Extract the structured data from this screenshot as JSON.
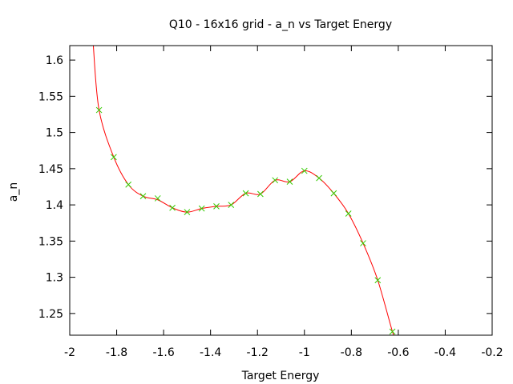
{
  "chart_data": {
    "type": "line",
    "title": "Q10 - 16x16 grid - a_n vs Target Energy",
    "xlabel": "Target Energy",
    "ylabel": "a_n",
    "xlim": [
      -2,
      -0.2
    ],
    "ylim": [
      1.22,
      1.62
    ],
    "x_ticks": [
      -2,
      -1.8,
      -1.6,
      -1.4,
      -1.2,
      -1,
      -0.8,
      -0.6,
      -0.4,
      -0.2
    ],
    "x_tick_labels": [
      "-2",
      "-1.8",
      "-1.6",
      "-1.4",
      "-1.2",
      "-1",
      "-0.8",
      "-0.6",
      "-0.4",
      "-0.2"
    ],
    "y_ticks": [
      1.25,
      1.3,
      1.35,
      1.4,
      1.45,
      1.5,
      1.55,
      1.6
    ],
    "y_tick_labels": [
      "1.25",
      "1.3",
      "1.35",
      "1.4",
      "1.45",
      "1.5",
      "1.55",
      "1.6"
    ],
    "grid": false,
    "legend": "none",
    "series": [
      {
        "kind": "scatter",
        "marker": "x",
        "color": "#33cc00",
        "points": [
          {
            "x": -1.875,
            "y": 1.531
          },
          {
            "x": -1.8125,
            "y": 1.466
          },
          {
            "x": -1.75,
            "y": 1.428
          },
          {
            "x": -1.6875,
            "y": 1.412
          },
          {
            "x": -1.625,
            "y": 1.409
          },
          {
            "x": -1.5625,
            "y": 1.396
          },
          {
            "x": -1.5,
            "y": 1.39
          },
          {
            "x": -1.4375,
            "y": 1.395
          },
          {
            "x": -1.375,
            "y": 1.398
          },
          {
            "x": -1.3125,
            "y": 1.4
          },
          {
            "x": -1.25,
            "y": 1.416
          },
          {
            "x": -1.1875,
            "y": 1.415
          },
          {
            "x": -1.125,
            "y": 1.434
          },
          {
            "x": -1.0625,
            "y": 1.432
          },
          {
            "x": -1.0,
            "y": 1.447
          },
          {
            "x": -0.9375,
            "y": 1.437
          },
          {
            "x": -0.875,
            "y": 1.416
          },
          {
            "x": -0.8125,
            "y": 1.388
          },
          {
            "x": -0.75,
            "y": 1.347
          },
          {
            "x": -0.6875,
            "y": 1.296
          },
          {
            "x": -0.625,
            "y": 1.225
          }
        ]
      },
      {
        "kind": "line",
        "color": "#ff0000",
        "points": [
          {
            "x": -1.9,
            "y": 1.622
          },
          {
            "x": -1.875,
            "y": 1.531
          },
          {
            "x": -1.8125,
            "y": 1.466
          },
          {
            "x": -1.75,
            "y": 1.428
          },
          {
            "x": -1.6875,
            "y": 1.412
          },
          {
            "x": -1.625,
            "y": 1.407
          },
          {
            "x": -1.5625,
            "y": 1.396
          },
          {
            "x": -1.5,
            "y": 1.39
          },
          {
            "x": -1.4375,
            "y": 1.395
          },
          {
            "x": -1.375,
            "y": 1.398
          },
          {
            "x": -1.3125,
            "y": 1.4
          },
          {
            "x": -1.25,
            "y": 1.416
          },
          {
            "x": -1.1875,
            "y": 1.415
          },
          {
            "x": -1.125,
            "y": 1.434
          },
          {
            "x": -1.0625,
            "y": 1.432
          },
          {
            "x": -1.0,
            "y": 1.447
          },
          {
            "x": -0.9375,
            "y": 1.437
          },
          {
            "x": -0.875,
            "y": 1.416
          },
          {
            "x": -0.8125,
            "y": 1.388
          },
          {
            "x": -0.75,
            "y": 1.347
          },
          {
            "x": -0.6875,
            "y": 1.296
          },
          {
            "x": -0.625,
            "y": 1.225
          },
          {
            "x": -0.615,
            "y": 1.22
          }
        ]
      }
    ]
  }
}
